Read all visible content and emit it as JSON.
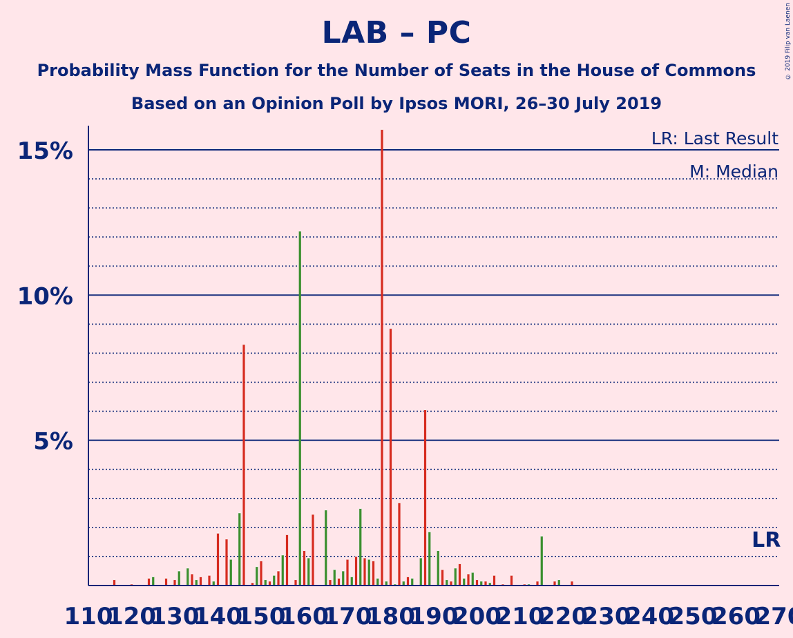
{
  "title": "LAB – PC",
  "subtitle1": "Probability Mass Function for the Number of Seats in the House of Commons",
  "subtitle2": "Based on an Opinion Poll by Ipsos MORI, 26–30 July 2019",
  "copyright": "© 2019 Filip van Laenen",
  "chart_data": {
    "type": "bar",
    "x_range": [
      110,
      270
    ],
    "ylim": [
      0,
      17
    ],
    "yticks": [
      {
        "value": 5,
        "label": "5%"
      },
      {
        "value": 10,
        "label": "10%"
      },
      {
        "value": 15,
        "label": "15%"
      }
    ],
    "xticks": [
      110,
      120,
      130,
      140,
      150,
      160,
      170,
      180,
      190,
      200,
      210,
      220,
      230,
      240,
      250,
      260,
      270
    ],
    "xtick_labels": [
      "110",
      "120",
      "130",
      "140",
      "150",
      "160",
      "170",
      "180",
      "190",
      "200",
      "210",
      "220",
      "230",
      "240",
      "250",
      "260",
      "270"
    ],
    "legend": [
      "LR: Last Result",
      "M: Median"
    ],
    "legend_position": "top-right",
    "annotations": [
      {
        "text": "LR",
        "x": 267
      }
    ],
    "colors": {
      "axis": "#0a2577",
      "bar_red": "#d62b1f",
      "bar_green": "#3a8f2e",
      "background": "#ffe6ea"
    },
    "bars": [
      {
        "x": 116,
        "value": 0.2,
        "color": "red"
      },
      {
        "x": 120,
        "value": 0.05,
        "color": "red"
      },
      {
        "x": 124,
        "value": 0.25,
        "color": "red"
      },
      {
        "x": 125,
        "value": 0.3,
        "color": "green"
      },
      {
        "x": 128,
        "value": 0.25,
        "color": "red"
      },
      {
        "x": 130,
        "value": 0.2,
        "color": "red"
      },
      {
        "x": 131,
        "value": 0.5,
        "color": "green"
      },
      {
        "x": 133,
        "value": 0.6,
        "color": "green"
      },
      {
        "x": 134,
        "value": 0.4,
        "color": "red"
      },
      {
        "x": 135,
        "value": 0.2,
        "color": "green"
      },
      {
        "x": 136,
        "value": 0.3,
        "color": "red"
      },
      {
        "x": 138,
        "value": 0.35,
        "color": "red"
      },
      {
        "x": 139,
        "value": 0.15,
        "color": "green"
      },
      {
        "x": 140,
        "value": 1.8,
        "color": "red"
      },
      {
        "x": 142,
        "value": 1.6,
        "color": "red"
      },
      {
        "x": 143,
        "value": 0.9,
        "color": "green"
      },
      {
        "x": 145,
        "value": 2.5,
        "color": "green"
      },
      {
        "x": 146,
        "value": 8.3,
        "color": "red"
      },
      {
        "x": 148,
        "value": 0.1,
        "color": "red"
      },
      {
        "x": 149,
        "value": 0.65,
        "color": "green"
      },
      {
        "x": 150,
        "value": 0.85,
        "color": "red"
      },
      {
        "x": 151,
        "value": 0.2,
        "color": "green"
      },
      {
        "x": 152,
        "value": 0.15,
        "color": "red"
      },
      {
        "x": 153,
        "value": 0.35,
        "color": "green"
      },
      {
        "x": 154,
        "value": 0.5,
        "color": "red"
      },
      {
        "x": 155,
        "value": 1.05,
        "color": "green"
      },
      {
        "x": 156,
        "value": 1.75,
        "color": "red"
      },
      {
        "x": 158,
        "value": 0.2,
        "color": "red"
      },
      {
        "x": 159,
        "value": 12.2,
        "color": "green"
      },
      {
        "x": 160,
        "value": 1.2,
        "color": "red"
      },
      {
        "x": 161,
        "value": 0.95,
        "color": "green"
      },
      {
        "x": 162,
        "value": 2.45,
        "color": "red"
      },
      {
        "x": 165,
        "value": 2.6,
        "color": "green"
      },
      {
        "x": 166,
        "value": 0.2,
        "color": "red"
      },
      {
        "x": 167,
        "value": 0.55,
        "color": "green"
      },
      {
        "x": 168,
        "value": 0.25,
        "color": "red"
      },
      {
        "x": 169,
        "value": 0.5,
        "color": "green"
      },
      {
        "x": 170,
        "value": 0.9,
        "color": "red"
      },
      {
        "x": 171,
        "value": 0.3,
        "color": "green"
      },
      {
        "x": 172,
        "value": 1.0,
        "color": "red"
      },
      {
        "x": 173,
        "value": 2.65,
        "color": "green"
      },
      {
        "x": 174,
        "value": 0.95,
        "color": "red"
      },
      {
        "x": 175,
        "value": 0.9,
        "color": "green"
      },
      {
        "x": 176,
        "value": 0.85,
        "color": "red"
      },
      {
        "x": 177,
        "value": 0.25,
        "color": "green"
      },
      {
        "x": 178,
        "value": 15.7,
        "color": "red"
      },
      {
        "x": 179,
        "value": 0.15,
        "color": "green"
      },
      {
        "x": 180,
        "value": 8.85,
        "color": "red"
      },
      {
        "x": 181,
        "value": 0.05,
        "color": "green"
      },
      {
        "x": 182,
        "value": 2.85,
        "color": "red"
      },
      {
        "x": 183,
        "value": 0.15,
        "color": "green"
      },
      {
        "x": 184,
        "value": 0.3,
        "color": "red"
      },
      {
        "x": 185,
        "value": 0.25,
        "color": "green"
      },
      {
        "x": 187,
        "value": 0.95,
        "color": "green"
      },
      {
        "x": 188,
        "value": 6.05,
        "color": "red"
      },
      {
        "x": 189,
        "value": 1.85,
        "color": "green"
      },
      {
        "x": 191,
        "value": 1.2,
        "color": "green"
      },
      {
        "x": 192,
        "value": 0.55,
        "color": "red"
      },
      {
        "x": 193,
        "value": 0.2,
        "color": "green"
      },
      {
        "x": 194,
        "value": 0.15,
        "color": "red"
      },
      {
        "x": 195,
        "value": 0.6,
        "color": "green"
      },
      {
        "x": 196,
        "value": 0.75,
        "color": "red"
      },
      {
        "x": 197,
        "value": 0.25,
        "color": "green"
      },
      {
        "x": 198,
        "value": 0.4,
        "color": "red"
      },
      {
        "x": 199,
        "value": 0.45,
        "color": "green"
      },
      {
        "x": 200,
        "value": 0.2,
        "color": "red"
      },
      {
        "x": 201,
        "value": 0.15,
        "color": "green"
      },
      {
        "x": 202,
        "value": 0.15,
        "color": "red"
      },
      {
        "x": 203,
        "value": 0.1,
        "color": "green"
      },
      {
        "x": 204,
        "value": 0.35,
        "color": "red"
      },
      {
        "x": 206,
        "value": 0.05,
        "color": "red"
      },
      {
        "x": 208,
        "value": 0.35,
        "color": "red"
      },
      {
        "x": 211,
        "value": 0.05,
        "color": "red"
      },
      {
        "x": 212,
        "value": 0.05,
        "color": "green"
      },
      {
        "x": 214,
        "value": 0.15,
        "color": "red"
      },
      {
        "x": 215,
        "value": 1.7,
        "color": "green"
      },
      {
        "x": 218,
        "value": 0.15,
        "color": "red"
      },
      {
        "x": 219,
        "value": 0.2,
        "color": "green"
      },
      {
        "x": 222,
        "value": 0.15,
        "color": "red"
      }
    ]
  }
}
